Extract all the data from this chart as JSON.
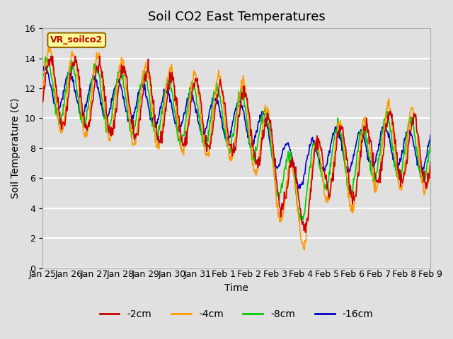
{
  "title": "Soil CO2 East Temperatures",
  "xlabel": "Time",
  "ylabel": "Soil Temperature (C)",
  "ylim": [
    0,
    16
  ],
  "yticks": [
    0,
    2,
    4,
    6,
    8,
    10,
    12,
    14,
    16
  ],
  "xtick_labels": [
    "Jan 25",
    "Jan 26",
    "Jan 27",
    "Jan 28",
    "Jan 29",
    "Jan 30",
    "Jan 31",
    "Feb 1",
    "Feb 2",
    "Feb 3",
    "Feb 4",
    "Feb 5",
    "Feb 6",
    "Feb 7",
    "Feb 8",
    "Feb 9"
  ],
  "colors": {
    "2cm": "#cc0000",
    "4cm": "#ff9900",
    "8cm": "#00cc00",
    "16cm": "#0000cc"
  },
  "legend_label": "VR_soilco2",
  "legend_box_color": "#ffff99",
  "legend_box_edge": "#996600",
  "bg_color": "#e0e0e0",
  "plot_bg": "#e0e0e0",
  "grid_color": "#ffffff",
  "series_labels": [
    "-2cm",
    "-4cm",
    "-8cm",
    "-16cm"
  ],
  "title_fontsize": 13,
  "axis_label_fontsize": 10,
  "tick_fontsize": 9
}
